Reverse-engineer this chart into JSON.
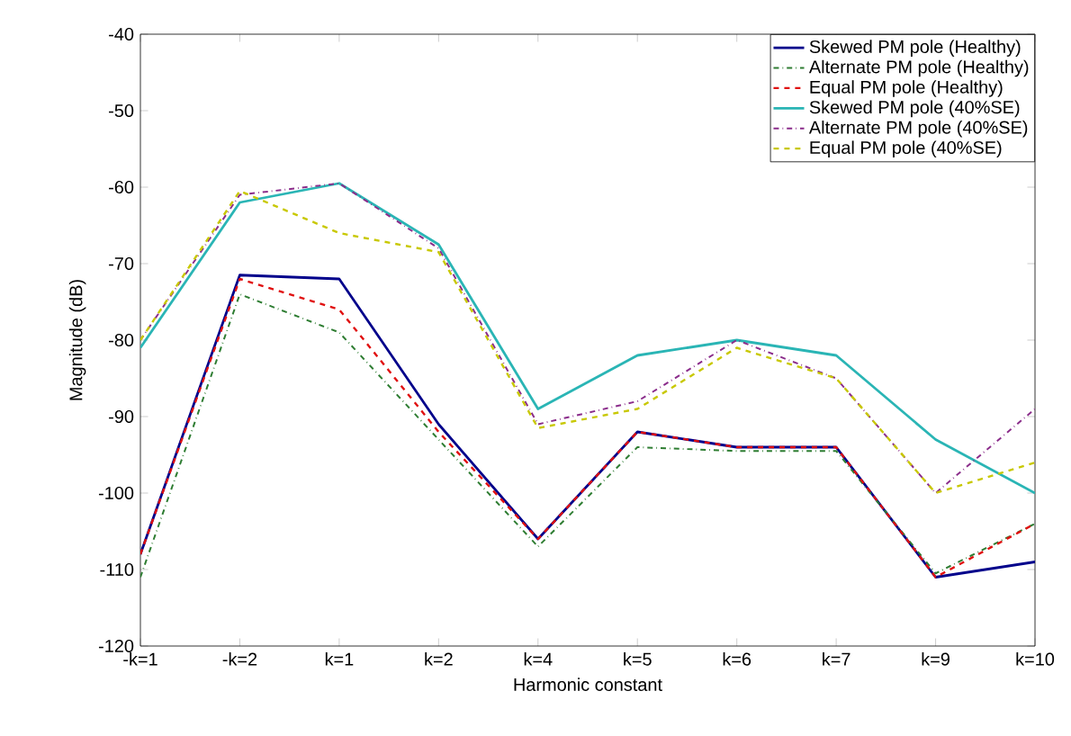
{
  "chart_data": {
    "type": "line",
    "xlabel": "Harmonic constant",
    "ylabel": "Magnitude (dB)",
    "categories": [
      "-k=1",
      "-k=2",
      "k=1",
      "k=2",
      "k=4",
      "k=5",
      "k=6",
      "k=7",
      "k=9",
      "k=10"
    ],
    "ylim": [
      -120,
      -40
    ],
    "yticks": [
      -120,
      -110,
      -100,
      -90,
      -80,
      -70,
      -60,
      -50,
      -40
    ],
    "grid": false,
    "legend": "top right",
    "marker": "none",
    "series": [
      {
        "name": "Skewed PM pole (Healthy)",
        "color": "#00008b",
        "line_style": "solid",
        "values": [
          -108,
          -71.5,
          -72,
          -91,
          -106,
          -92,
          -94,
          -94,
          -111,
          -109
        ]
      },
      {
        "name": "Alternate PM pole (Healthy)",
        "color": "#2e7d32",
        "line_style": "dashdot",
        "values": [
          -111,
          -74,
          -79,
          -93,
          -107,
          -94,
          -94.5,
          -94.5,
          -110.5,
          -104
        ]
      },
      {
        "name": "Equal PM pole (Healthy)",
        "color": "#e01010",
        "line_style": "dashed",
        "values": [
          -108,
          -72,
          -76,
          -92,
          -106,
          -92,
          -94,
          -94,
          -111,
          -104
        ]
      },
      {
        "name": "Skewed PM pole (40%SE)",
        "color": "#2ab5b5",
        "line_style": "solid",
        "values": [
          -81,
          -62,
          -59.5,
          -67.5,
          -89,
          -82,
          -80,
          -82,
          -93,
          -100
        ]
      },
      {
        "name": "Alternate PM pole (40%SE)",
        "color": "#8b2d8b",
        "line_style": "dashdot",
        "values": [
          -80,
          -61,
          -59.5,
          -68,
          -91,
          -88,
          -80,
          -85,
          -100,
          -89
        ]
      },
      {
        "name": "Equal PM pole (40%SE)",
        "color": "#c8c800",
        "line_style": "dashed",
        "values": [
          -80,
          -60.5,
          -66,
          -68.5,
          -91.5,
          -89,
          -81,
          -85,
          -100,
          -96
        ]
      }
    ]
  }
}
